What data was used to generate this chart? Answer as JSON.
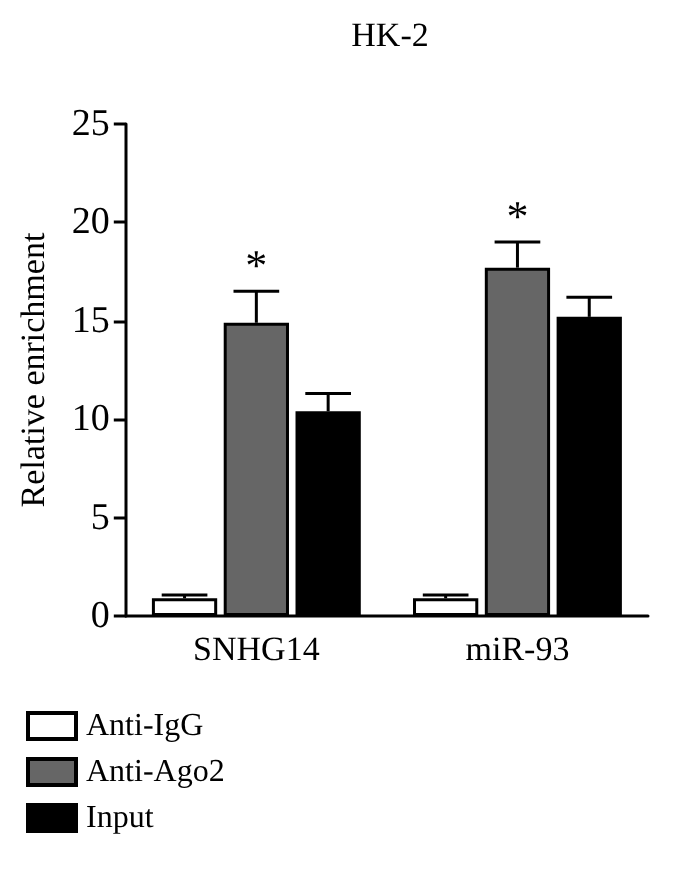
{
  "chart_data": {
    "type": "bar",
    "title": "HK-2",
    "ylabel": "Relative enrichment",
    "categories": [
      "SNHG14",
      "miR-93"
    ],
    "series": [
      {
        "name": "Anti-IgG",
        "color": "#ffffff",
        "values": [
          0.9,
          0.9
        ],
        "errors": [
          [
            0.9,
            1.07
          ],
          [
            0.9,
            1.07
          ]
        ]
      },
      {
        "name": "Anti-Ago2",
        "color": "#666666",
        "values": [
          14.9,
          17.7
        ],
        "errors": [
          [
            14.9,
            16.5
          ],
          [
            17.7,
            19.0
          ]
        ]
      },
      {
        "name": "Input",
        "color": "#000000",
        "values": [
          10.4,
          15.2
        ],
        "errors": [
          [
            10.4,
            11.3
          ],
          [
            15.2,
            16.2
          ]
        ]
      }
    ],
    "annotations": [
      {
        "text": "*",
        "x": "SNHG14",
        "y": 16.5
      },
      {
        "text": "*",
        "x": "miR-93",
        "y": 19.0
      }
    ],
    "ylim": [
      0,
      25
    ],
    "yticks": [
      0,
      5,
      10,
      15,
      20,
      25
    ],
    "grid": false,
    "legend": "bottom left"
  }
}
